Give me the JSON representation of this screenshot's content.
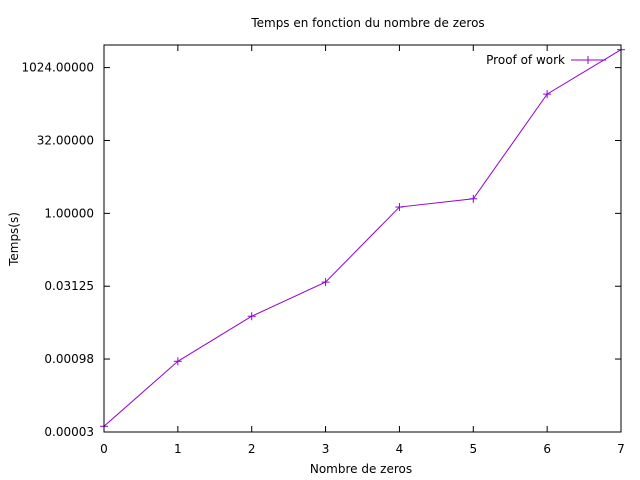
{
  "chart_data": {
    "type": "line",
    "title": "Temps en fonction du nombre de zeros",
    "xlabel": "Nombre de zeros",
    "ylabel": "Temps(s)",
    "x": [
      0,
      1,
      2,
      3,
      4,
      5,
      6,
      7
    ],
    "xlim": [
      0,
      7
    ],
    "x_ticks": [
      "0",
      "1",
      "2",
      "3",
      "4",
      "5",
      "6",
      "7"
    ],
    "y_scale": "log2",
    "ylim": [
      3.05e-05,
      3000
    ],
    "y_ticks": [
      {
        "value": 3.05e-05,
        "label": "0.00003"
      },
      {
        "value": 0.00098,
        "label": "0.00098"
      },
      {
        "value": 0.03125,
        "label": "0.03125"
      },
      {
        "value": 1.0,
        "label": "1.00000"
      },
      {
        "value": 32.0,
        "label": "32.00000"
      },
      {
        "value": 1024.0,
        "label": "1024.00000"
      }
    ],
    "series": [
      {
        "name": "Proof of work",
        "color": "#9400d3",
        "marker": "+",
        "values": [
          4e-05,
          0.00088,
          0.0075,
          0.038,
          1.35,
          2.0,
          290,
          2400
        ]
      }
    ],
    "legend_position": "top-right",
    "grid": false
  }
}
